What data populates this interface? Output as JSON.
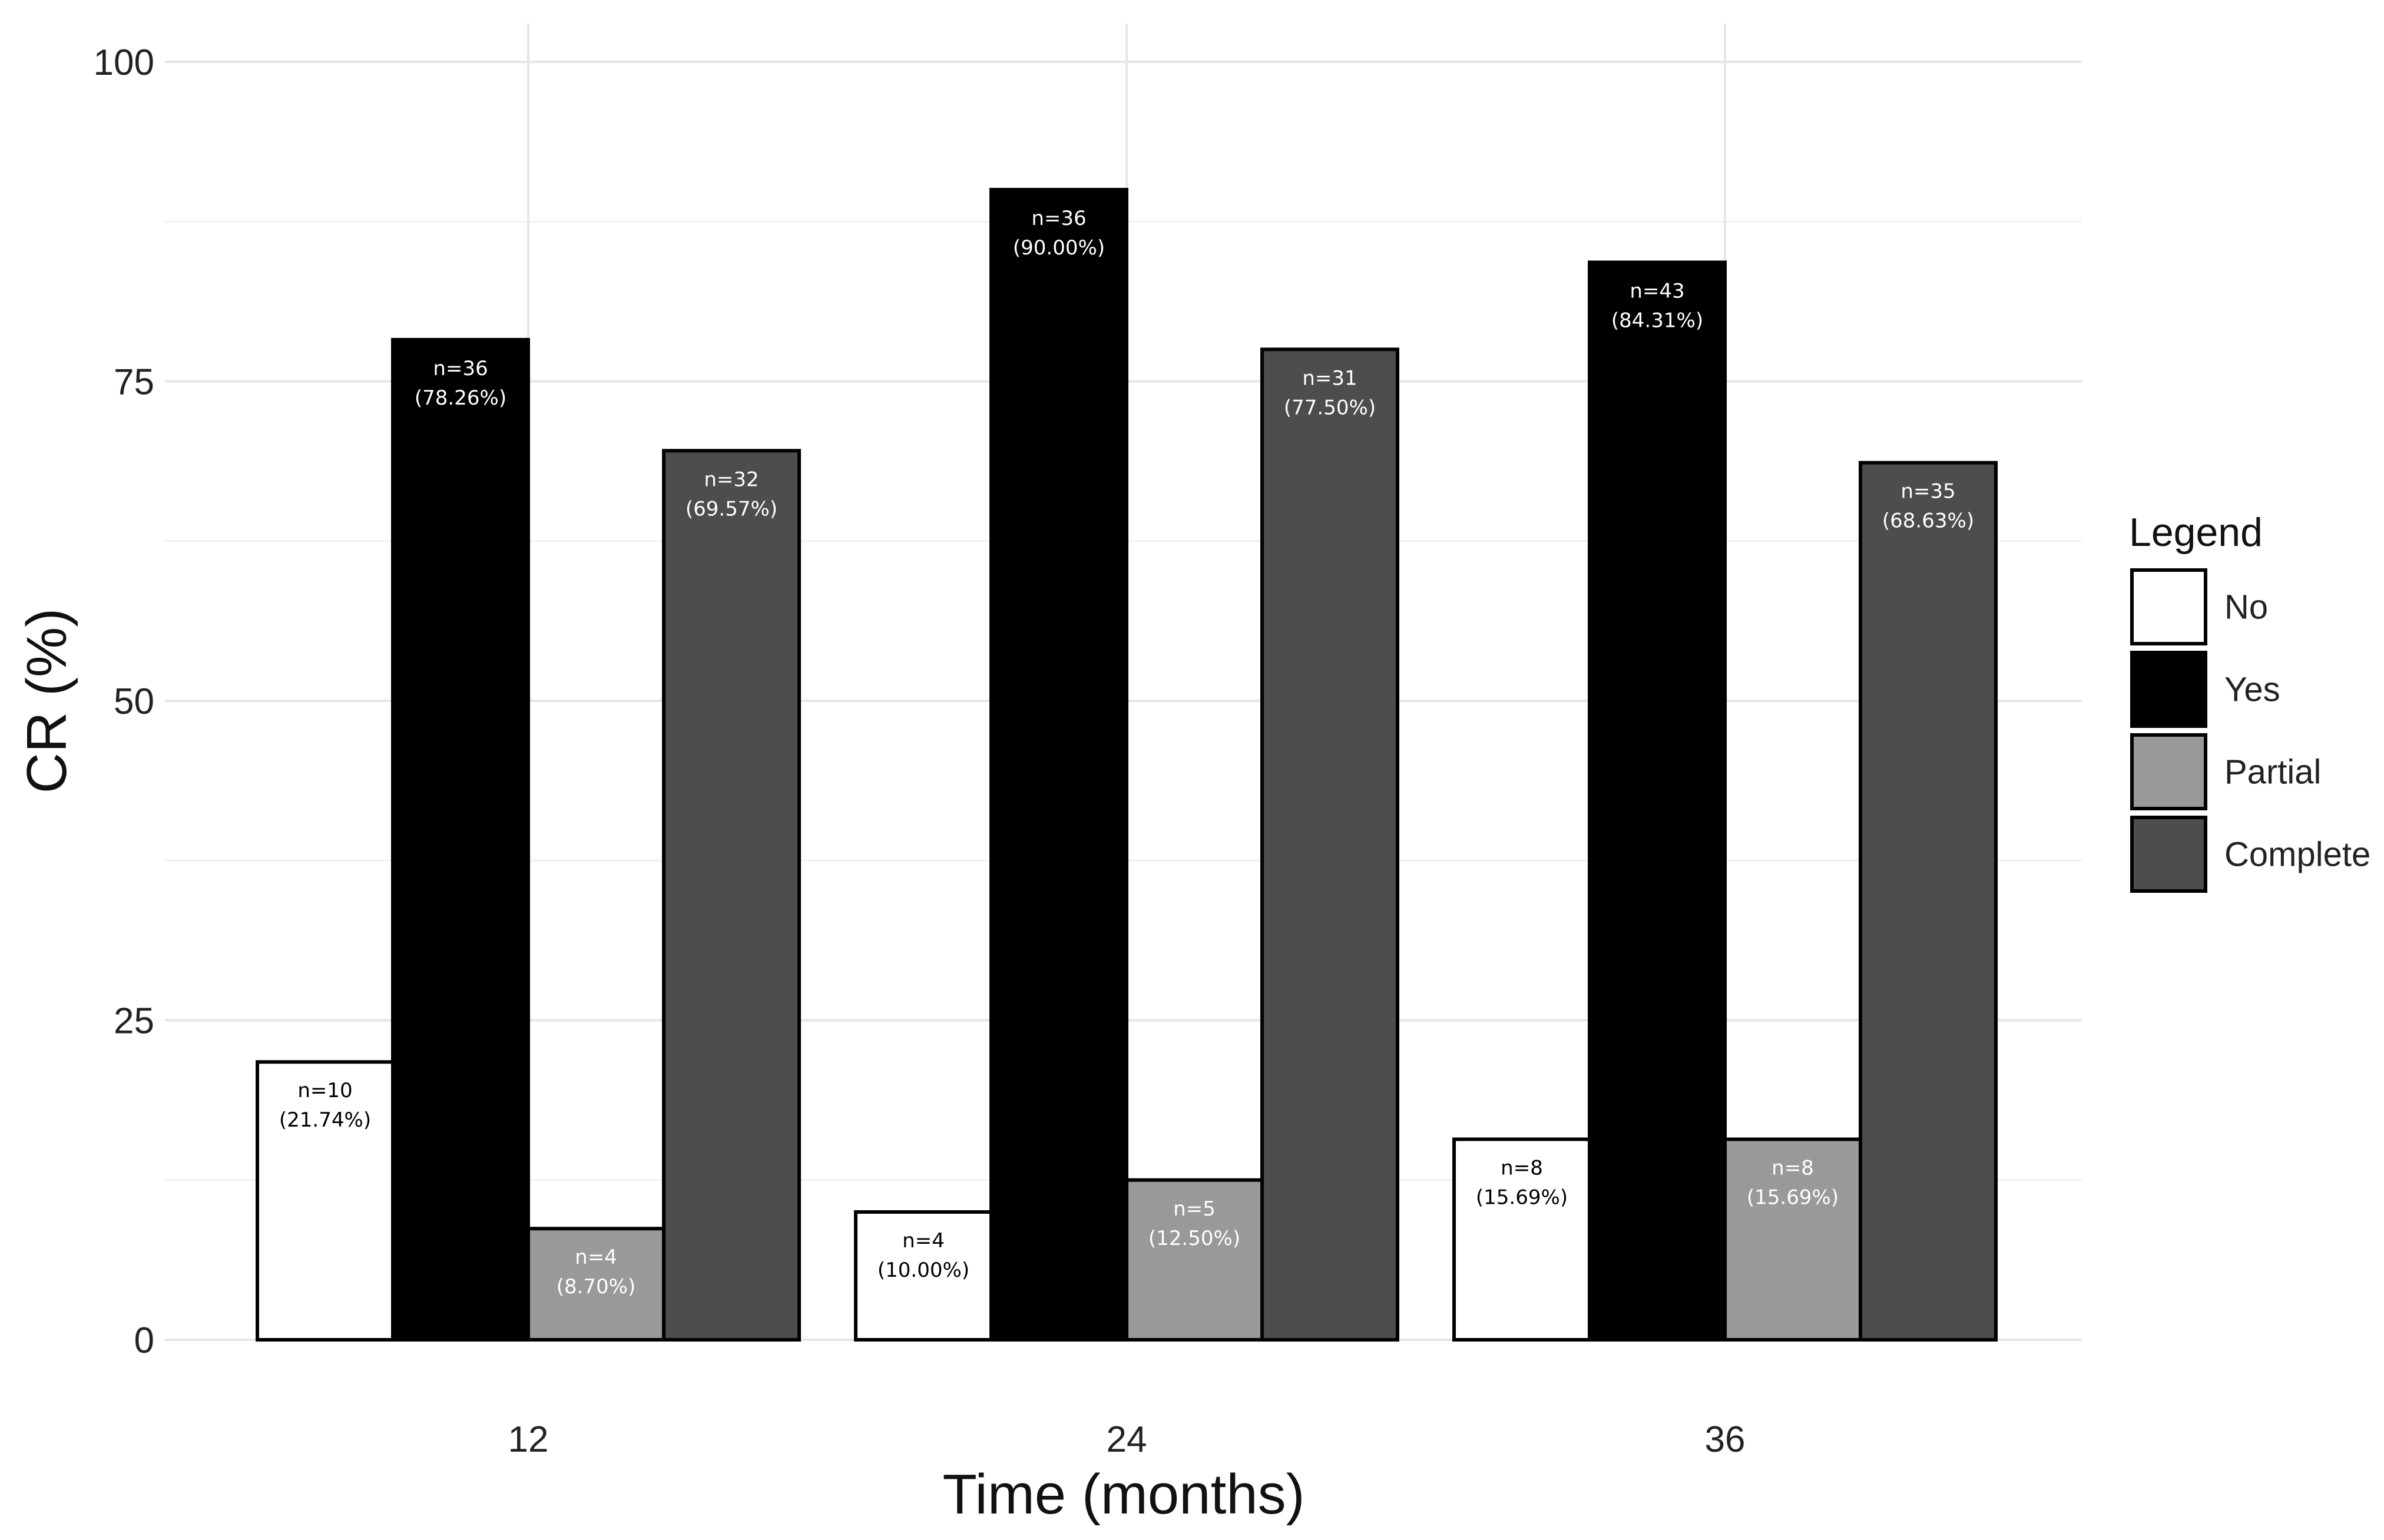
{
  "chart_data": {
    "type": "bar",
    "categories": [
      "12",
      "24",
      "36"
    ],
    "series": [
      {
        "name": "No",
        "color": "#ffffff",
        "label_color": "#000000",
        "values": [
          21.74,
          10.0,
          15.69
        ],
        "labels": [
          [
            "n=10",
            "(21.74%)"
          ],
          [
            "n=4",
            "(10.00%)"
          ],
          [
            "n=8",
            "(15.69%)"
          ]
        ]
      },
      {
        "name": "Yes",
        "color": "#000000",
        "label_color": "#ffffff",
        "values": [
          78.26,
          90.0,
          84.31
        ],
        "labels": [
          [
            "n=36",
            "(78.26%)"
          ],
          [
            "n=36",
            "(90.00%)"
          ],
          [
            "n=43",
            "(84.31%)"
          ]
        ]
      },
      {
        "name": "Partial",
        "color": "#999999",
        "label_color": "#ffffff",
        "values": [
          8.7,
          12.5,
          15.69
        ],
        "labels": [
          [
            "n=4",
            "(8.70%)"
          ],
          [
            "n=5",
            "(12.50%)"
          ],
          [
            "n=8",
            "(15.69%)"
          ]
        ]
      },
      {
        "name": "Complete",
        "color": "#4d4d4d",
        "label_color": "#ffffff",
        "values": [
          69.57,
          77.5,
          68.63
        ],
        "labels": [
          [
            "n=32",
            "(69.57%)"
          ],
          [
            "n=31",
            "(77.50%)"
          ],
          [
            "n=35",
            "(68.63%)"
          ]
        ]
      }
    ],
    "xlabel": "Time (months)",
    "ylabel": "CR (%)",
    "ylim": [
      0,
      100
    ],
    "yticks": [
      0,
      25,
      50,
      75,
      100
    ],
    "grid": true,
    "legend_title": "Legend",
    "legend_position": "right"
  }
}
